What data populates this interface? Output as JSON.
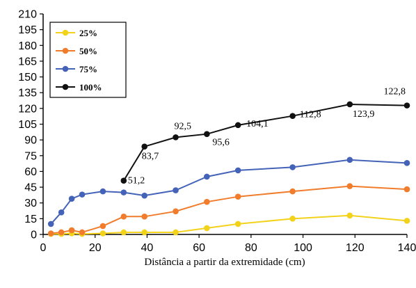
{
  "chart_data": {
    "type": "line",
    "xlabel": "Distância a partir da extremidade (cm)",
    "ylabel": "",
    "xlim": [
      0,
      140
    ],
    "ylim": [
      0,
      210
    ],
    "xticks": [
      "0",
      "20",
      "40",
      "60",
      "80",
      "100",
      "120",
      "140"
    ],
    "yticks": [
      "0",
      "15",
      "30",
      "45",
      "60",
      "75",
      "90",
      "105",
      "120",
      "135",
      "150",
      "165",
      "180",
      "195",
      "210"
    ],
    "grid": false,
    "legend_position": "top-left",
    "series": [
      {
        "name": "25%",
        "color": "#f2d21b",
        "points": [
          [
            3,
            0.5
          ],
          [
            7,
            0.5
          ],
          [
            11,
            1
          ],
          [
            15,
            0.5
          ],
          [
            23,
            1
          ],
          [
            31,
            2
          ],
          [
            39,
            2
          ],
          [
            51,
            2
          ],
          [
            63,
            6
          ],
          [
            75,
            10
          ],
          [
            96,
            15
          ],
          [
            118,
            18
          ],
          [
            140,
            13
          ]
        ]
      },
      {
        "name": "50%",
        "color": "#f07c2c",
        "points": [
          [
            3,
            1
          ],
          [
            7,
            2
          ],
          [
            11,
            4
          ],
          [
            15,
            2
          ],
          [
            23,
            8
          ],
          [
            31,
            17
          ],
          [
            39,
            17
          ],
          [
            51,
            22
          ],
          [
            63,
            31
          ],
          [
            75,
            36
          ],
          [
            96,
            41
          ],
          [
            118,
            46
          ],
          [
            140,
            43
          ]
        ]
      },
      {
        "name": "75%",
        "color": "#4463b8",
        "points": [
          [
            3,
            10
          ],
          [
            7,
            21
          ],
          [
            11,
            34
          ],
          [
            15,
            38
          ],
          [
            23,
            41
          ],
          [
            31,
            40
          ],
          [
            39,
            37
          ],
          [
            51,
            42
          ],
          [
            63,
            55
          ],
          [
            75,
            61
          ],
          [
            96,
            64
          ],
          [
            118,
            71
          ],
          [
            140,
            68
          ]
        ]
      },
      {
        "name": "100%",
        "color": "#111111",
        "points": [
          [
            31,
            51.2
          ],
          [
            39,
            83.7
          ],
          [
            51,
            92.5
          ],
          [
            63,
            95.6
          ],
          [
            75,
            104.1
          ],
          [
            96,
            112.8
          ],
          [
            118,
            123.9
          ],
          [
            140,
            122.8
          ]
        ]
      }
    ],
    "data_labels": [
      {
        "text": "51,2",
        "x": 31,
        "y": 51.2
      },
      {
        "text": "83,7",
        "x": 39,
        "y": 83.7
      },
      {
        "text": "92,5",
        "x": 51,
        "y": 92.5
      },
      {
        "text": "95,6",
        "x": 63,
        "y": 95.6
      },
      {
        "text": "104,1",
        "x": 75,
        "y": 104.1
      },
      {
        "text": "112,8",
        "x": 96,
        "y": 112.8
      },
      {
        "text": "123,9",
        "x": 118,
        "y": 123.9
      },
      {
        "text": "122,8",
        "x": 140,
        "y": 122.8
      }
    ]
  }
}
